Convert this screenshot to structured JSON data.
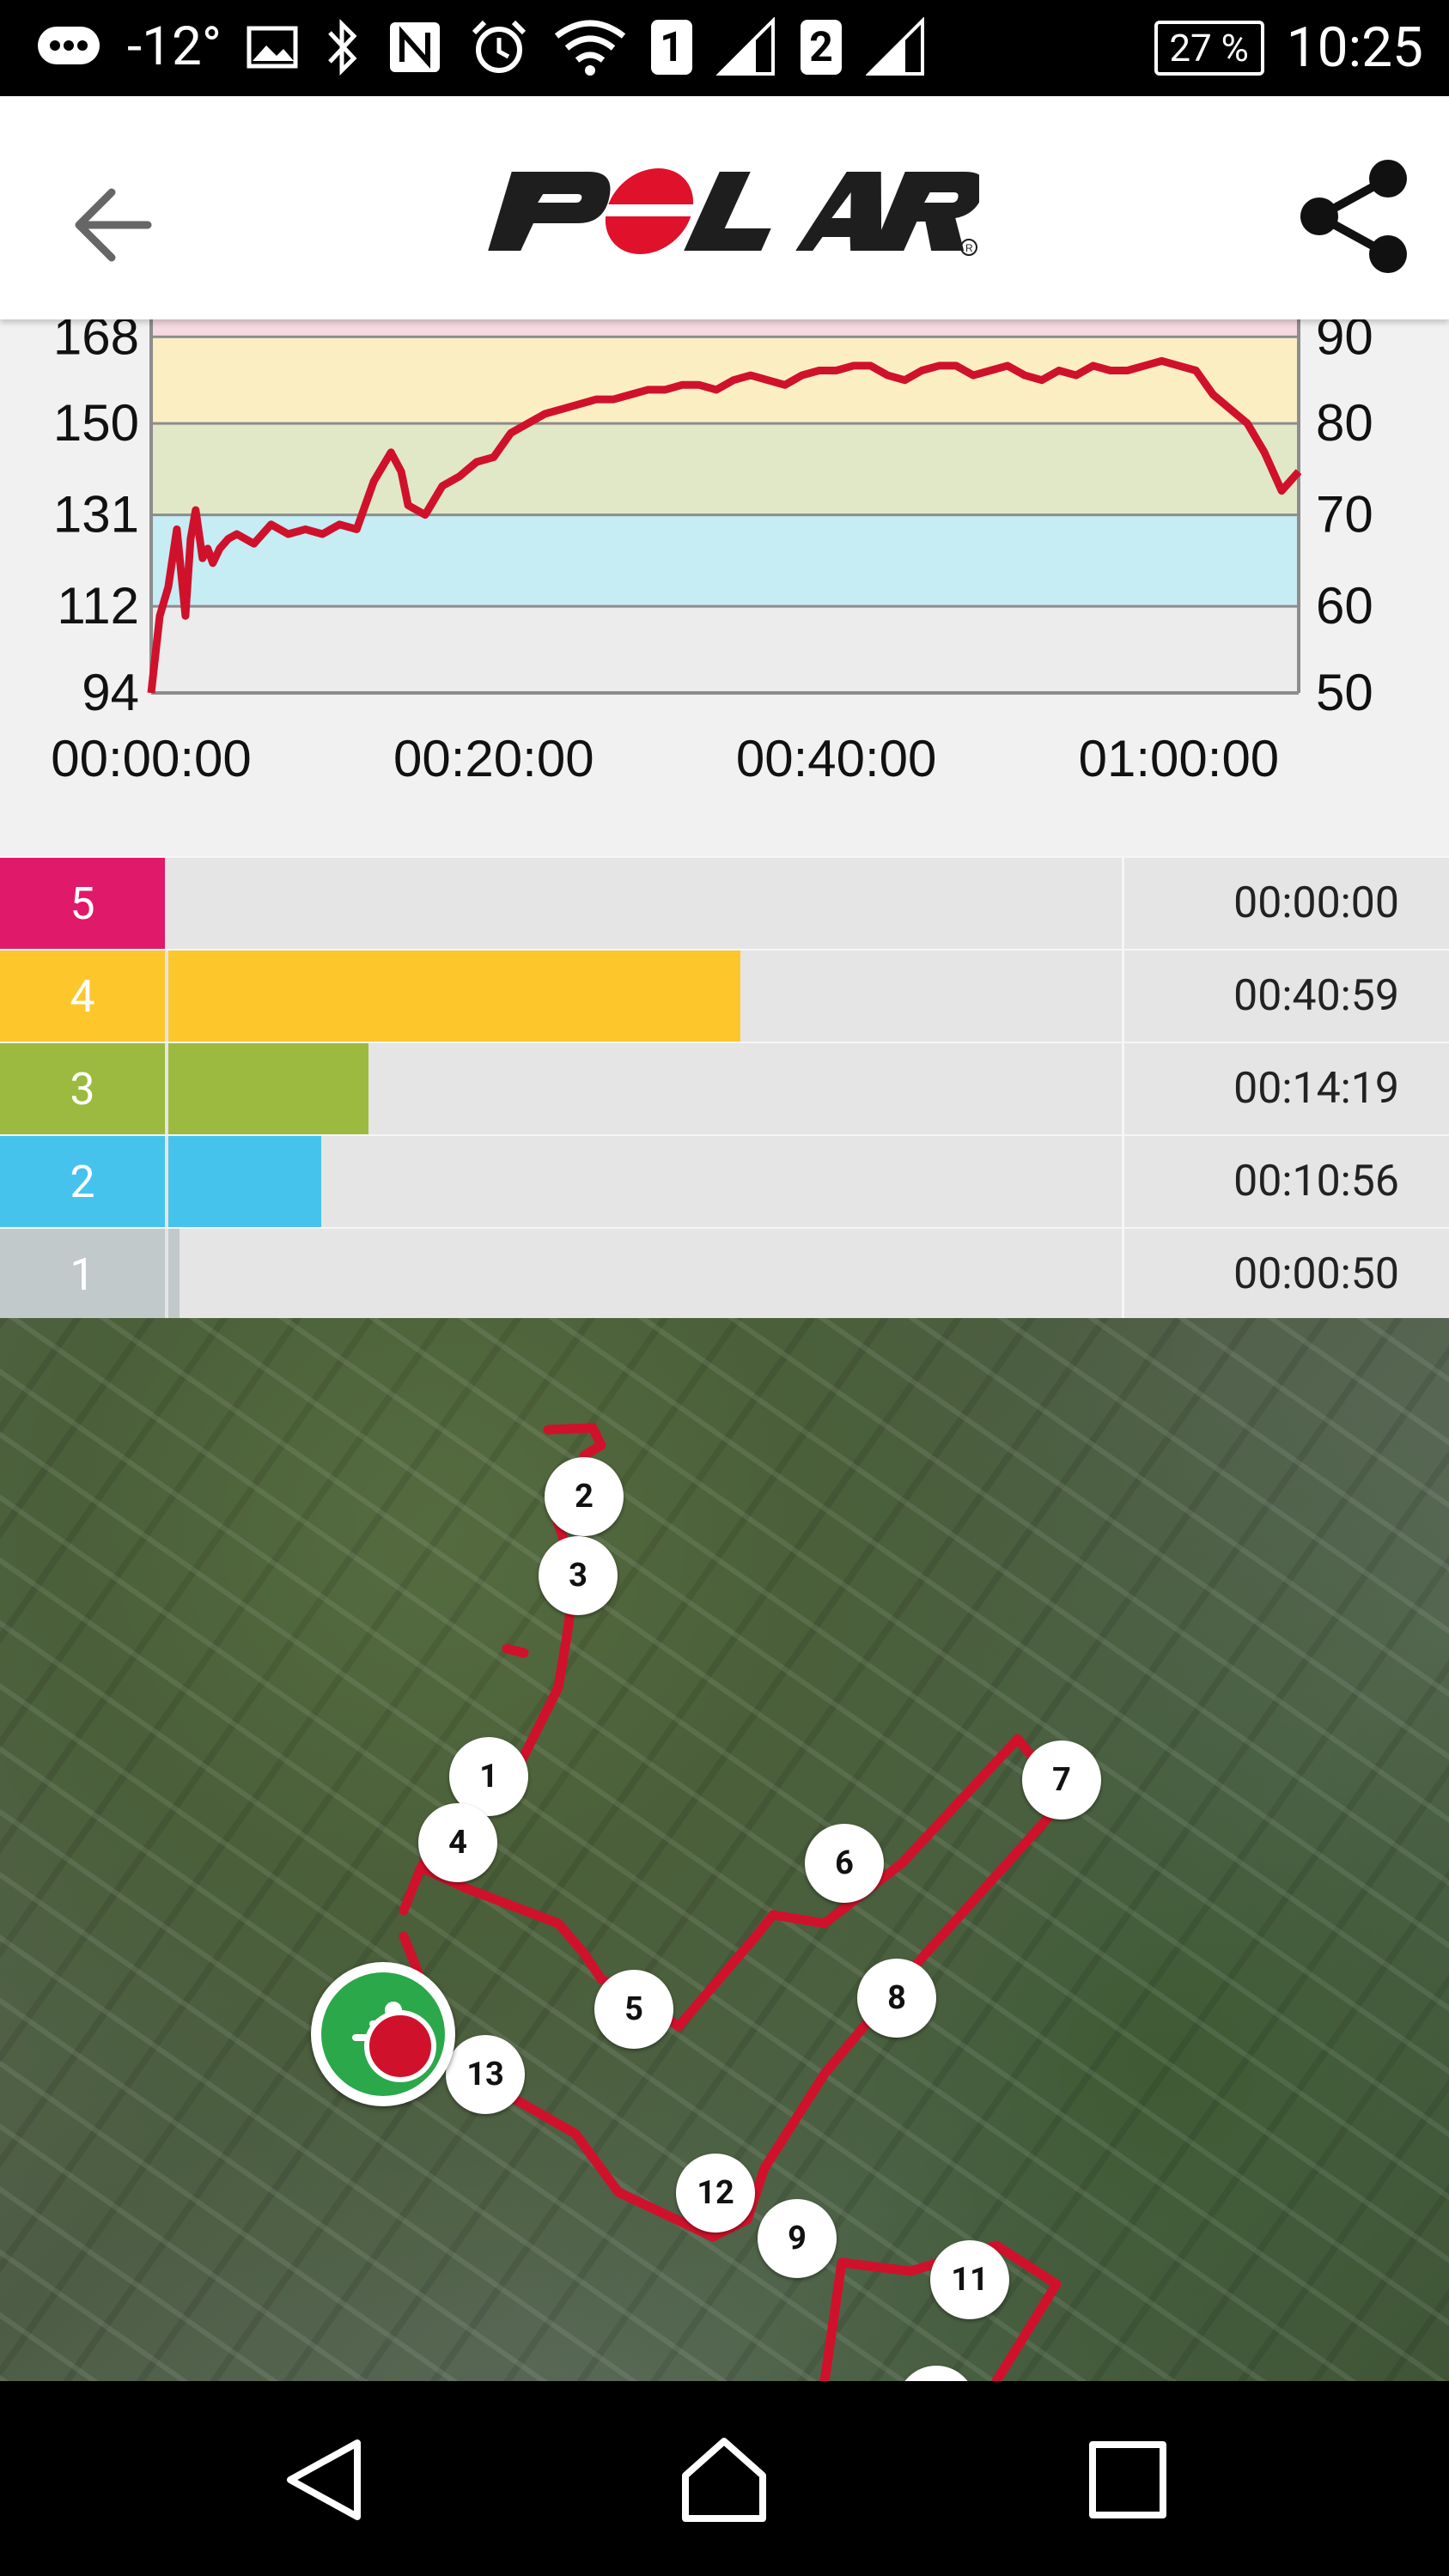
{
  "status_bar": {
    "temperature": "-12°",
    "sim1": "1",
    "sim2": "2",
    "battery": "27 %",
    "time": "10:25",
    "icons": [
      "message-icon",
      "image-icon",
      "bluetooth-icon",
      "nfc-icon",
      "alarm-icon",
      "wifi-icon",
      "signal-icon",
      "signal-icon"
    ]
  },
  "app_bar": {
    "logo_text": "POLAR",
    "back_icon": "arrow-left-icon",
    "share_icon": "share-icon"
  },
  "chart_data": {
    "type": "line",
    "left_axis_ticks": [
      "94",
      "112",
      "131",
      "150",
      "168"
    ],
    "right_axis_ticks": [
      "50",
      "60",
      "70",
      "80",
      "90"
    ],
    "x_tick_labels": [
      "00:00:00",
      "00:20:00",
      "00:40:00",
      "01:00:00"
    ],
    "ylim": [
      94,
      175
    ],
    "xlim_minutes": [
      0,
      67
    ],
    "zone_bands": [
      {
        "from": 94,
        "to": 131,
        "color": "#ececec"
      },
      {
        "from": 112,
        "to": 131,
        "color": "#c6ecf4"
      },
      {
        "from": 131,
        "to": 150,
        "color": "#e1e8c8"
      },
      {
        "from": 150,
        "to": 168,
        "color": "#fbeec3"
      },
      {
        "from": 168,
        "to": 175,
        "color": "#f6d9e1"
      }
    ],
    "series": [
      {
        "color": "#d0112b",
        "x": [
          0,
          0.5,
          1,
          1.5,
          2,
          2.3,
          2.6,
          3,
          3.3,
          3.6,
          4,
          4.5,
          5,
          6,
          7,
          8,
          9,
          10,
          11,
          12,
          13,
          14,
          14.6,
          15,
          16,
          17,
          18,
          19,
          20,
          21,
          22,
          23,
          24,
          25,
          26,
          27,
          28,
          29,
          30,
          31,
          32,
          33,
          34,
          35,
          36,
          37,
          38,
          39,
          40,
          41,
          42,
          43,
          44,
          45,
          46,
          47,
          48,
          49,
          50,
          51,
          52,
          53,
          54,
          55,
          56,
          57,
          58,
          59,
          60,
          61,
          62,
          63,
          64,
          65,
          66,
          67
        ],
        "y": [
          94,
          110,
          116,
          128,
          110,
          126,
          132,
          122,
          124,
          121,
          124,
          126,
          127,
          125,
          129,
          127,
          128,
          127,
          129,
          128,
          138,
          144,
          140,
          133,
          131,
          137,
          139,
          142,
          143,
          148,
          150,
          152,
          153,
          154,
          155,
          155,
          156,
          157,
          157,
          158,
          158,
          157,
          159,
          160,
          159,
          158,
          160,
          161,
          161,
          162,
          162,
          160,
          159,
          161,
          162,
          162,
          160,
          161,
          162,
          160,
          159,
          161,
          160,
          162,
          161,
          161,
          162,
          163,
          162,
          161,
          156,
          153,
          150,
          144,
          136,
          140
        ]
      }
    ]
  },
  "zones": [
    {
      "number": "5",
      "time": "00:00:00",
      "color": "#e0196a",
      "fraction": 0.0
    },
    {
      "number": "4",
      "time": "00:40:59",
      "color": "#fdc72c",
      "fraction": 0.6
    },
    {
      "number": "3",
      "time": "00:14:19",
      "color": "#9cba3f",
      "fraction": 0.21
    },
    {
      "number": "2",
      "time": "00:10:56",
      "color": "#46c3ed",
      "fraction": 0.16
    },
    {
      "number": "1",
      "time": "00:00:50",
      "color": "#c2c9cb",
      "fraction": 0.012
    }
  ],
  "map": {
    "route_color": "#d0112b",
    "start_icon": "running-start-icon",
    "lap_markers": [
      "1",
      "2",
      "3",
      "4",
      "5",
      "6",
      "7",
      "8",
      "9",
      "11",
      "12",
      "13"
    ]
  },
  "nav_bar": {
    "back_icon": "nav-back-icon",
    "home_icon": "nav-home-icon",
    "recents_icon": "nav-recents-icon"
  }
}
